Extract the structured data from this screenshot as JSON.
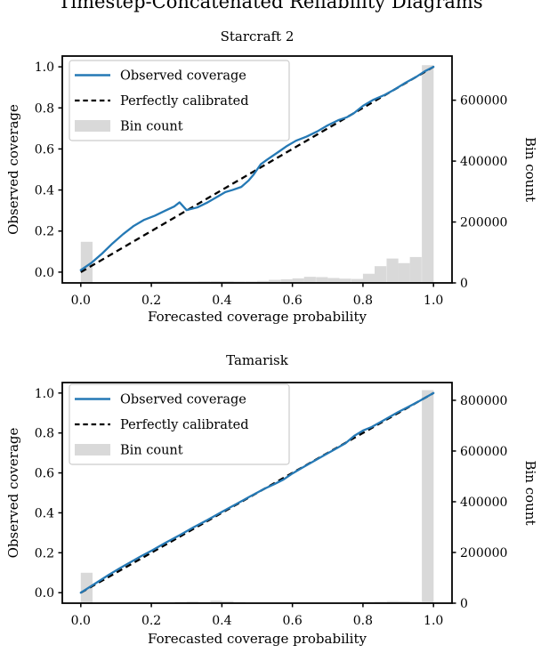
{
  "figure_title": "Timestep-Concatenated Reliability Diagrams",
  "colors": {
    "observed_line": "#2579b5",
    "calibrated_line": "#000000",
    "bin_fill": "#d9d9d9",
    "legend_edge": "#cccccc",
    "background": "#ffffff"
  },
  "chart_data": [
    {
      "type": "line+bar",
      "title": "Starcraft 2",
      "xlabel": "Forecasted coverage probability",
      "ylabel_left": "Observed coverage",
      "ylabel_right": "Bin count",
      "xlim": [
        -0.0525,
        1.0525
      ],
      "ylim_left": [
        -0.0525,
        1.0525
      ],
      "ylim_right": [
        0,
        745000
      ],
      "xticks": [
        0.0,
        0.2,
        0.4,
        0.6,
        0.8,
        1.0
      ],
      "yticks_left": [
        0.0,
        0.2,
        0.4,
        0.6,
        0.8,
        1.0
      ],
      "yticks_right": [
        0,
        200000,
        400000,
        600000
      ],
      "legend": [
        "Observed coverage",
        "Perfectly calibrated",
        "Bin count"
      ],
      "grid": false,
      "legend_position": "upper left",
      "series": {
        "observed": {
          "x": [
            0.0,
            0.03,
            0.06,
            0.09,
            0.12,
            0.15,
            0.18,
            0.21,
            0.24,
            0.265,
            0.28,
            0.3,
            0.33,
            0.36,
            0.39,
            0.41,
            0.43,
            0.455,
            0.475,
            0.49,
            0.51,
            0.53,
            0.56,
            0.585,
            0.61,
            0.64,
            0.67,
            0.7,
            0.73,
            0.755,
            0.775,
            0.8,
            0.83,
            0.86,
            0.89,
            0.92,
            0.95,
            0.975,
            1.0
          ],
          "y": [
            0.01,
            0.045,
            0.09,
            0.14,
            0.185,
            0.225,
            0.255,
            0.275,
            0.3,
            0.32,
            0.34,
            0.302,
            0.315,
            0.34,
            0.37,
            0.39,
            0.4,
            0.415,
            0.445,
            0.475,
            0.525,
            0.55,
            0.585,
            0.615,
            0.64,
            0.66,
            0.685,
            0.715,
            0.74,
            0.755,
            0.775,
            0.81,
            0.84,
            0.862,
            0.89,
            0.922,
            0.95,
            0.978,
            1.0
          ]
        },
        "calibrated": {
          "x": [
            0,
            1
          ],
          "y": [
            0,
            1
          ]
        }
      },
      "bins": {
        "width": 0.0333,
        "lefts": [
          0.0,
          0.167,
          0.2,
          0.233,
          0.267,
          0.3,
          0.333,
          0.367,
          0.4,
          0.433,
          0.467,
          0.5,
          0.533,
          0.567,
          0.6,
          0.633,
          0.667,
          0.7,
          0.733,
          0.767,
          0.8,
          0.833,
          0.867,
          0.9,
          0.933,
          0.967
        ],
        "counts": [
          135000,
          4000,
          5000,
          5000,
          5000,
          5000,
          5500,
          6000,
          6000,
          5000,
          5000,
          6500,
          10000,
          12000,
          15000,
          20000,
          19000,
          16000,
          14000,
          13000,
          30000,
          55000,
          80000,
          65000,
          85000,
          715000
        ]
      }
    },
    {
      "type": "line+bar",
      "title": "Tamarisk",
      "xlabel": "Forecasted coverage probability",
      "ylabel_left": "Observed coverage",
      "ylabel_right": "Bin count",
      "xlim": [
        -0.0525,
        1.0525
      ],
      "ylim_left": [
        -0.0525,
        1.0525
      ],
      "ylim_right": [
        0,
        870000
      ],
      "xticks": [
        0.0,
        0.2,
        0.4,
        0.6,
        0.8,
        1.0
      ],
      "yticks_left": [
        0.0,
        0.2,
        0.4,
        0.6,
        0.8,
        1.0
      ],
      "yticks_right": [
        0,
        200000,
        400000,
        600000,
        800000
      ],
      "legend": [
        "Observed coverage",
        "Perfectly calibrated",
        "Bin count"
      ],
      "grid": false,
      "legend_position": "upper left",
      "series": {
        "observed": {
          "x": [
            0.0,
            0.04,
            0.08,
            0.11,
            0.14,
            0.17,
            0.2,
            0.24,
            0.28,
            0.32,
            0.36,
            0.4,
            0.44,
            0.48,
            0.52,
            0.55,
            0.575,
            0.6,
            0.63,
            0.66,
            0.69,
            0.72,
            0.75,
            0.775,
            0.8,
            0.825,
            0.85,
            0.875,
            0.9,
            0.93,
            0.96,
            1.0
          ],
          "y": [
            0.0,
            0.045,
            0.09,
            0.122,
            0.152,
            0.182,
            0.21,
            0.25,
            0.288,
            0.328,
            0.365,
            0.405,
            0.443,
            0.482,
            0.52,
            0.545,
            0.567,
            0.597,
            0.628,
            0.658,
            0.688,
            0.718,
            0.748,
            0.785,
            0.812,
            0.83,
            0.855,
            0.88,
            0.905,
            0.932,
            0.96,
            1.0
          ]
        },
        "calibrated": {
          "x": [
            0,
            1
          ],
          "y": [
            0,
            1
          ]
        }
      },
      "bins": {
        "width": 0.0333,
        "lefts": [
          0.0,
          0.267,
          0.3,
          0.333,
          0.367,
          0.4,
          0.433,
          0.767,
          0.8,
          0.833,
          0.867,
          0.9,
          0.933,
          0.967
        ],
        "counts": [
          120000,
          5000,
          6500,
          5000,
          10000,
          8000,
          4000,
          4000,
          5000,
          6000,
          8000,
          7500,
          6000,
          840000
        ]
      }
    }
  ]
}
